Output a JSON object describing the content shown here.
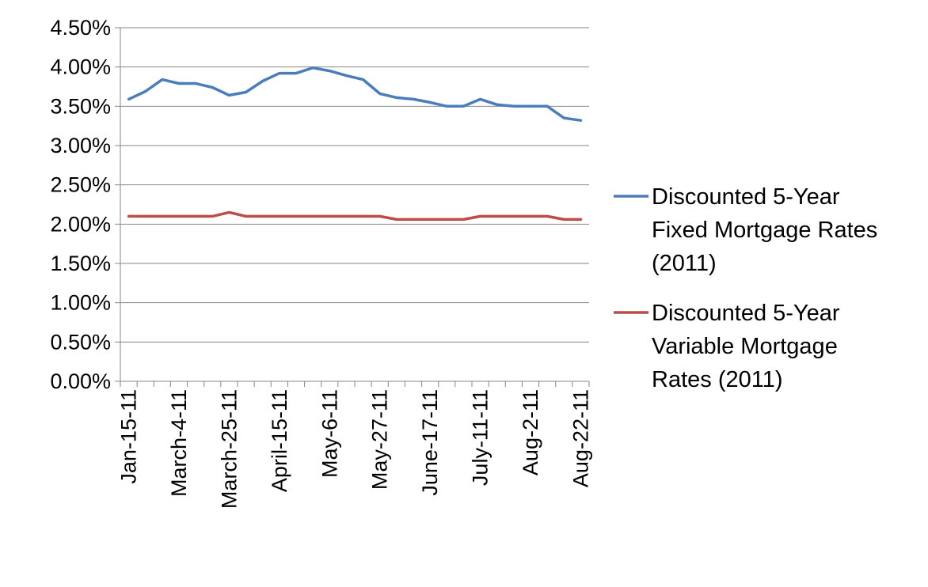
{
  "chart_data": {
    "type": "line",
    "title": "",
    "xlabel": "",
    "ylabel": "",
    "ylim": [
      0,
      0.045
    ],
    "ytick_values": [
      0,
      0.005,
      0.01,
      0.015,
      0.02,
      0.025,
      0.03,
      0.035,
      0.04,
      0.045
    ],
    "ytick_labels": [
      "0.00%",
      "0.50%",
      "1.00%",
      "1.50%",
      "2.00%",
      "2.50%",
      "3.00%",
      "3.50%",
      "4.00%",
      "4.50%"
    ],
    "grid": "horizontal",
    "legend_position": "right",
    "categories": [
      "Jan-15-11",
      "",
      "",
      "March-4-11",
      "",
      "",
      "March-25-11",
      "",
      "",
      "April-15-11",
      "",
      "",
      "May-6-11",
      "",
      "",
      "May-27-11",
      "",
      "",
      "June-17-11",
      "",
      "",
      "July-11-11",
      "",
      "",
      "Aug-2-11",
      "",
      "",
      "Aug-22-11"
    ],
    "series": [
      {
        "name": "Discounted 5-Year Fixed Mortgage Rates (2011)",
        "color": "#4a7ebb",
        "values": [
          0.0359,
          0.0369,
          0.0384,
          0.0379,
          0.0379,
          0.0374,
          0.0364,
          0.0368,
          0.0382,
          0.0392,
          0.0392,
          0.0399,
          0.0395,
          0.0389,
          0.0384,
          0.0366,
          0.0361,
          0.0359,
          0.0355,
          0.035,
          0.035,
          0.0359,
          0.0352,
          0.035,
          0.035,
          0.035,
          0.0335,
          0.0332
        ]
      },
      {
        "name": "Discounted 5-Year Variable Mortgage Rates (2011)",
        "color": "#be4b48",
        "values": [
          0.021,
          0.021,
          0.021,
          0.021,
          0.021,
          0.021,
          0.0215,
          0.021,
          0.021,
          0.021,
          0.021,
          0.021,
          0.021,
          0.021,
          0.021,
          0.021,
          0.0206,
          0.0206,
          0.0206,
          0.0206,
          0.0206,
          0.021,
          0.021,
          0.021,
          0.021,
          0.021,
          0.0206,
          0.0206
        ]
      }
    ],
    "legend_lines": [
      [
        "Discounted 5-Year",
        "Fixed Mortgage Rates",
        "(2011)"
      ],
      [
        "Discounted 5-Year",
        "Variable Mortgage",
        "Rates (2011)"
      ]
    ]
  }
}
